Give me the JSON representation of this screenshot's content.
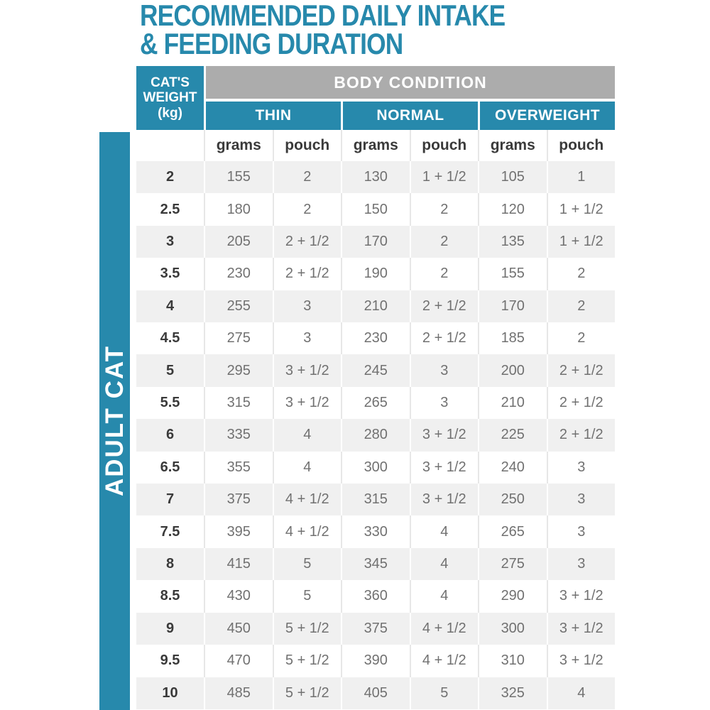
{
  "title": {
    "lines": [
      "RECOMMENDED DAILY INTAKE",
      "& FEEDING DURATION"
    ]
  },
  "side_label": "ADULT CAT",
  "table": {
    "weight_header_lines": [
      "CAT'S",
      "WEIGHT",
      "(kg)"
    ],
    "body_condition_header": "BODY CONDITION",
    "conditions": [
      "THIN",
      "NORMAL",
      "OVERWEIGHT"
    ],
    "sub_headers": [
      "grams",
      "pouch"
    ],
    "rows": [
      {
        "weight": "2",
        "values": [
          "155",
          "2",
          "130",
          "1 + 1/2",
          "105",
          "1"
        ]
      },
      {
        "weight": "2.5",
        "values": [
          "180",
          "2",
          "150",
          "2",
          "120",
          "1 + 1/2"
        ]
      },
      {
        "weight": "3",
        "values": [
          "205",
          "2 + 1/2",
          "170",
          "2",
          "135",
          "1 + 1/2"
        ]
      },
      {
        "weight": "3.5",
        "values": [
          "230",
          "2 + 1/2",
          "190",
          "2",
          "155",
          "2"
        ]
      },
      {
        "weight": "4",
        "values": [
          "255",
          "3",
          "210",
          "2 + 1/2",
          "170",
          "2"
        ]
      },
      {
        "weight": "4.5",
        "values": [
          "275",
          "3",
          "230",
          "2 + 1/2",
          "185",
          "2"
        ]
      },
      {
        "weight": "5",
        "values": [
          "295",
          "3 + 1/2",
          "245",
          "3",
          "200",
          "2 + 1/2"
        ]
      },
      {
        "weight": "5.5",
        "values": [
          "315",
          "3 + 1/2",
          "265",
          "3",
          "210",
          "2 + 1/2"
        ]
      },
      {
        "weight": "6",
        "values": [
          "335",
          "4",
          "280",
          "3 + 1/2",
          "225",
          "2 + 1/2"
        ]
      },
      {
        "weight": "6.5",
        "values": [
          "355",
          "4",
          "300",
          "3 + 1/2",
          "240",
          "3"
        ]
      },
      {
        "weight": "7",
        "values": [
          "375",
          "4 + 1/2",
          "315",
          "3 + 1/2",
          "250",
          "3"
        ]
      },
      {
        "weight": "7.5",
        "values": [
          "395",
          "4 + 1/2",
          "330",
          "4",
          "265",
          "3"
        ]
      },
      {
        "weight": "8",
        "values": [
          "415",
          "5",
          "345",
          "4",
          "275",
          "3"
        ]
      },
      {
        "weight": "8.5",
        "values": [
          "430",
          "5",
          "360",
          "4",
          "290",
          "3 + 1/2"
        ]
      },
      {
        "weight": "9",
        "values": [
          "450",
          "5 + 1/2",
          "375",
          "4 + 1/2",
          "300",
          "3 + 1/2"
        ]
      },
      {
        "weight": "9.5",
        "values": [
          "470",
          "5 + 1/2",
          "390",
          "4 + 1/2",
          "310",
          "3 + 1/2"
        ]
      },
      {
        "weight": "10",
        "values": [
          "485",
          "5 + 1/2",
          "405",
          "5",
          "325",
          "4"
        ]
      }
    ]
  },
  "colors": {
    "teal": "#2789AC",
    "header_gray": "#ACACAC",
    "row_stripe": "#F0F0F0",
    "value_text": "#717171",
    "dark_text": "#3A3A3A"
  }
}
